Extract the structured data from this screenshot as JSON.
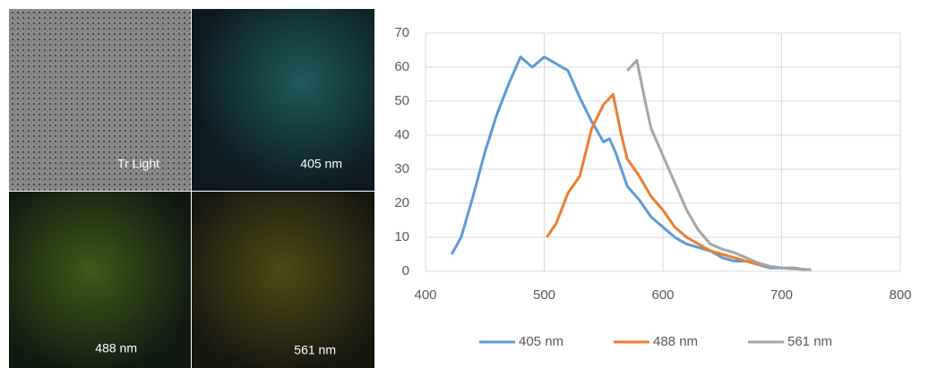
{
  "panels": [
    {
      "label": "Tr Light"
    },
    {
      "label": "405 nm"
    },
    {
      "label": "488 nm"
    },
    {
      "label": "561 nm"
    }
  ],
  "chart_data": {
    "type": "line",
    "xlim": [
      400,
      800
    ],
    "xticks": [
      400,
      500,
      600,
      700,
      800
    ],
    "ylim": [
      0,
      70
    ],
    "yticks": [
      0,
      10,
      20,
      30,
      40,
      50,
      60,
      70
    ],
    "grid": true,
    "legend": "bottom",
    "series": [
      {
        "name": "405 nm",
        "color": "#5b9bd5",
        "x": [
          422,
          430,
          440,
          450,
          460,
          470,
          480,
          490,
          500,
          510,
          520,
          530,
          540,
          550,
          555,
          560,
          570,
          580,
          590,
          600,
          610,
          620,
          630,
          640,
          650,
          660,
          670,
          680,
          690,
          700,
          710,
          720
        ],
        "values": [
          5,
          10,
          22,
          35,
          46,
          55,
          63,
          60,
          63,
          61,
          59,
          51,
          44,
          38,
          39,
          35,
          25,
          21,
          16,
          13,
          10,
          8,
          7,
          6,
          4,
          3,
          3,
          2,
          1,
          1,
          1,
          0.5
        ]
      },
      {
        "name": "488 nm",
        "color": "#ed7d31",
        "x": [
          502,
          510,
          520,
          530,
          540,
          550,
          558,
          565,
          570,
          580,
          590,
          600,
          610,
          620,
          630,
          640,
          650,
          660,
          670,
          680,
          690,
          700,
          710,
          720
        ],
        "values": [
          10,
          14,
          23,
          28,
          42,
          49,
          52,
          40,
          33,
          28,
          22,
          18,
          13,
          10,
          8,
          6,
          5,
          4,
          3,
          2,
          1.5,
          1,
          0.8,
          0.5
        ]
      },
      {
        "name": "561 nm",
        "color": "#a5a5a5",
        "x": [
          570,
          578,
          585,
          590,
          600,
          610,
          620,
          630,
          640,
          650,
          660,
          670,
          680,
          690,
          700,
          710,
          725
        ],
        "values": [
          59,
          62,
          50,
          42,
          34,
          26,
          18,
          12,
          8,
          6.5,
          5.5,
          4,
          2.5,
          1.5,
          1,
          0.7,
          0.5
        ]
      }
    ]
  }
}
